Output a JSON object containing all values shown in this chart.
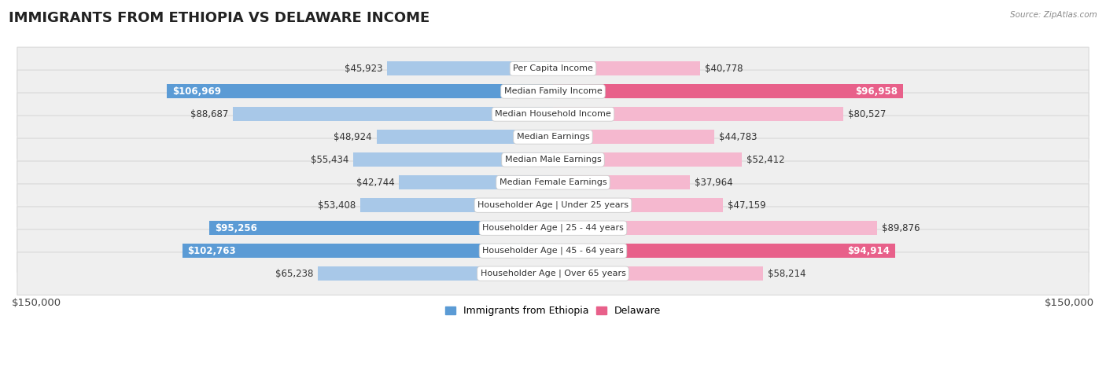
{
  "title": "IMMIGRANTS FROM ETHIOPIA VS DELAWARE INCOME",
  "source": "Source: ZipAtlas.com",
  "categories": [
    "Per Capita Income",
    "Median Family Income",
    "Median Household Income",
    "Median Earnings",
    "Median Male Earnings",
    "Median Female Earnings",
    "Householder Age | Under 25 years",
    "Householder Age | 25 - 44 years",
    "Householder Age | 45 - 64 years",
    "Householder Age | Over 65 years"
  ],
  "ethiopia_values": [
    45923,
    106969,
    88687,
    48924,
    55434,
    42744,
    53408,
    95256,
    102763,
    65238
  ],
  "delaware_values": [
    40778,
    96958,
    80527,
    44783,
    52412,
    37964,
    47159,
    89876,
    94914,
    58214
  ],
  "ethiopia_labels": [
    "$45,923",
    "$106,969",
    "$88,687",
    "$48,924",
    "$55,434",
    "$42,744",
    "$53,408",
    "$95,256",
    "$102,763",
    "$65,238"
  ],
  "delaware_labels": [
    "$40,778",
    "$96,958",
    "$80,527",
    "$44,783",
    "$52,412",
    "$37,964",
    "$47,159",
    "$89,876",
    "$94,914",
    "$58,214"
  ],
  "ethiopia_inside": [
    false,
    true,
    false,
    false,
    false,
    false,
    false,
    true,
    true,
    false
  ],
  "delaware_inside": [
    false,
    true,
    false,
    false,
    false,
    false,
    false,
    false,
    true,
    false
  ],
  "ethiopia_color_light": "#a8c8e8",
  "ethiopia_color_dark": "#5b9bd5",
  "delaware_color_light": "#f5b8cf",
  "delaware_color_dark": "#e8608a",
  "max_value": 150000,
  "x_axis_label_left": "$150,000",
  "x_axis_label_right": "$150,000",
  "legend_ethiopia": "Immigrants from Ethiopia",
  "legend_delaware": "Delaware",
  "background_color": "#ffffff",
  "row_bg_color": "#efefef",
  "row_border_color": "#d8d8d8",
  "title_fontsize": 13,
  "label_fontsize": 8.5,
  "category_fontsize": 8.0,
  "axis_fontsize": 9.5
}
